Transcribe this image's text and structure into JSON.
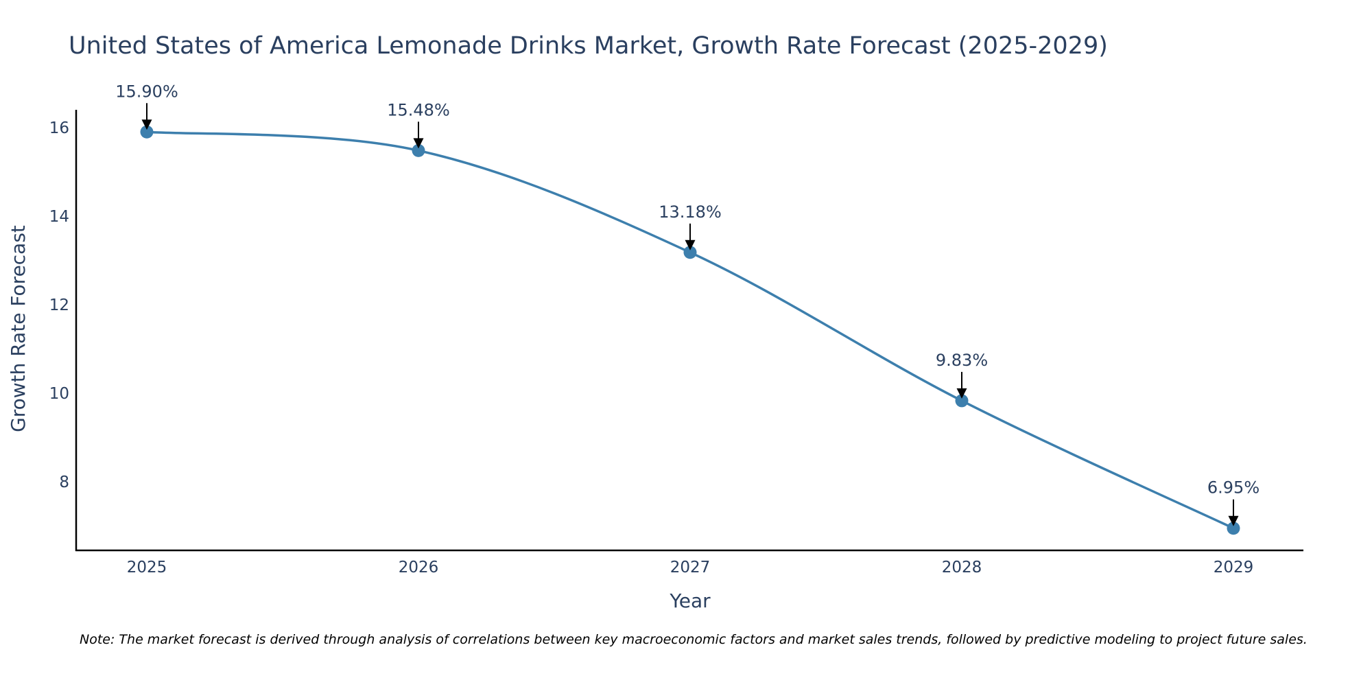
{
  "chart_data": {
    "type": "line",
    "title": "United States of America Lemonade Drinks Market, Growth Rate Forecast (2025-2029)",
    "xlabel": "Year",
    "ylabel": "Growth Rate Forecast",
    "x": [
      "2025",
      "2026",
      "2027",
      "2028",
      "2029"
    ],
    "series": [
      {
        "name": "Growth Rate Forecast",
        "values": [
          15.9,
          15.48,
          13.18,
          9.83,
          6.95
        ]
      }
    ],
    "data_labels": [
      "15.90%",
      "15.48%",
      "13.18%",
      "9.83%",
      "6.95%"
    ],
    "yticks": [
      8,
      10,
      12,
      14,
      16
    ],
    "ylim": [
      6.45,
      16.4
    ],
    "grid": false,
    "line_color": "#3d7fad",
    "marker_color": "#3d7fad",
    "annotation_color": "#000000",
    "text_color": "#2a3f5f"
  },
  "note": "Note: The market forecast is derived through analysis of correlations between key macroeconomic factors and market sales trends, followed by predictive modeling to project future sales."
}
